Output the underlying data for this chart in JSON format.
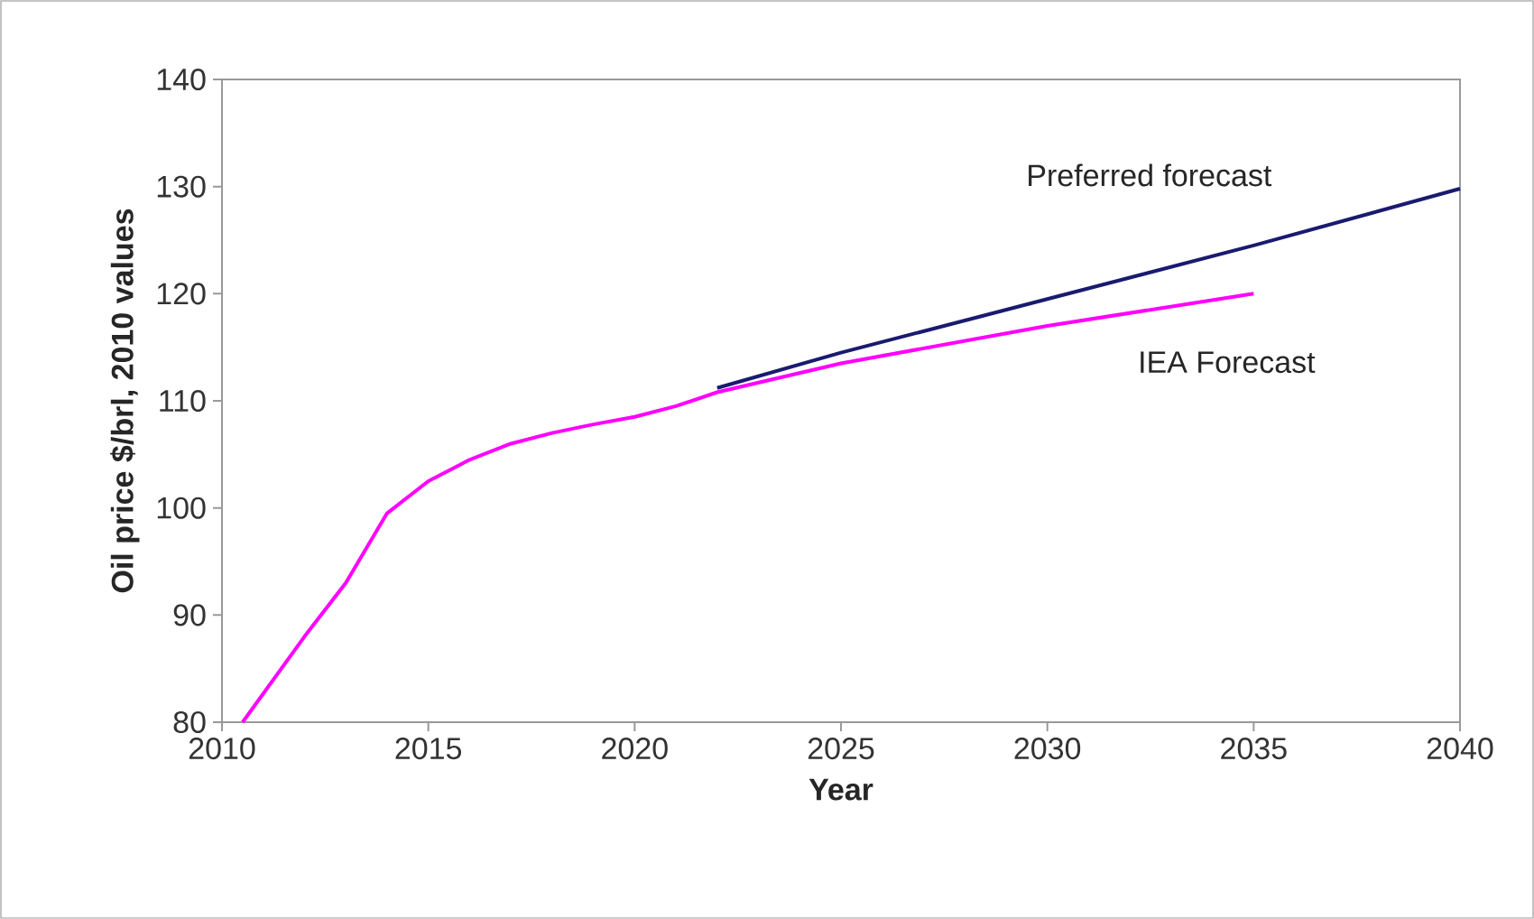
{
  "chart_data": {
    "type": "line",
    "xlabel": "Year",
    "ylabel": "Oil price $/brl, 2010 values",
    "xlim": [
      2010,
      2040
    ],
    "xticks": [
      2010,
      2015,
      2020,
      2025,
      2030,
      2035,
      2040
    ],
    "ylim": [
      80,
      140
    ],
    "yticks": [
      80,
      90,
      100,
      110,
      120,
      130,
      140
    ],
    "grid": false,
    "legend": false,
    "marker": "none",
    "line_style": "solid",
    "series": [
      {
        "name": "Preferred forecast",
        "color": "#1a1a70",
        "x": [
          2022,
          2025,
          2030,
          2035,
          2040
        ],
        "values": [
          111.2,
          114.5,
          119.5,
          124.5,
          129.8
        ]
      },
      {
        "name": "IEA Forecast",
        "color": "#ff00ff",
        "x": [
          2010.5,
          2012,
          2013,
          2014,
          2015,
          2016,
          2017,
          2018,
          2019,
          2020,
          2021,
          2022,
          2025,
          2030,
          2035
        ],
        "values": [
          80,
          88,
          93,
          99.5,
          102.5,
          104.5,
          106,
          107,
          107.8,
          108.5,
          109.5,
          110.8,
          113.5,
          117,
          120
        ]
      }
    ]
  }
}
